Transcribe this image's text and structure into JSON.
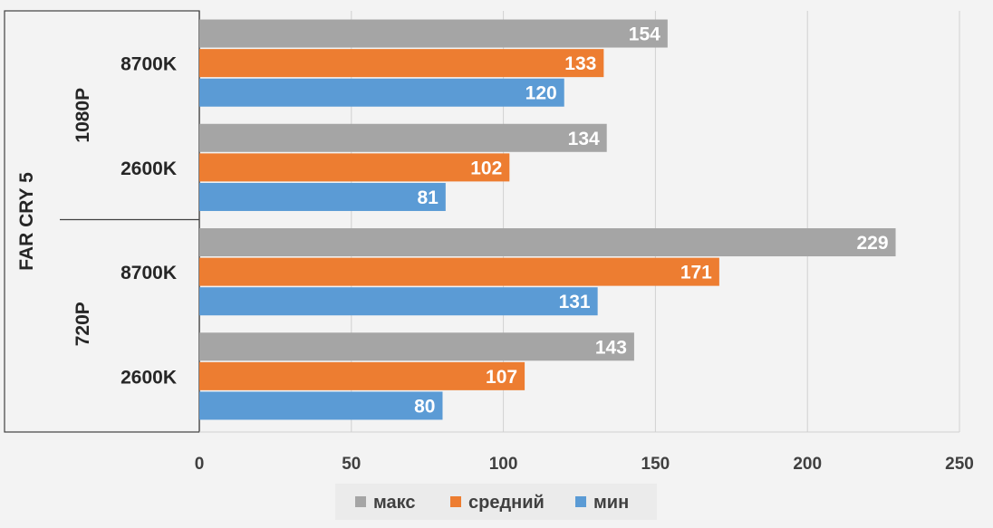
{
  "chart_data": {
    "type": "bar",
    "orientation": "horizontal",
    "title": "",
    "outer_group_label": "FAR CRY 5",
    "groups": [
      {
        "label": "1080P",
        "categories": [
          "8700K",
          "2600K"
        ]
      },
      {
        "label": "720P",
        "categories": [
          "8700K",
          "2600K"
        ]
      }
    ],
    "categories": [
      "8700K",
      "2600K",
      "8700K",
      "2600K"
    ],
    "series": [
      {
        "name": "макс",
        "color": "#a5a5a5",
        "values": [
          154,
          134,
          229,
          143
        ]
      },
      {
        "name": "средний",
        "color": "#ed7d31",
        "values": [
          133,
          102,
          171,
          107
        ]
      },
      {
        "name": "мин",
        "color": "#5b9bd5",
        "values": [
          120,
          81,
          131,
          80
        ]
      }
    ],
    "xlim": [
      0,
      250
    ],
    "xticks": [
      0,
      50,
      100,
      150,
      200,
      250
    ],
    "grid": true,
    "legend_position": "bottom",
    "data_labels": true
  }
}
